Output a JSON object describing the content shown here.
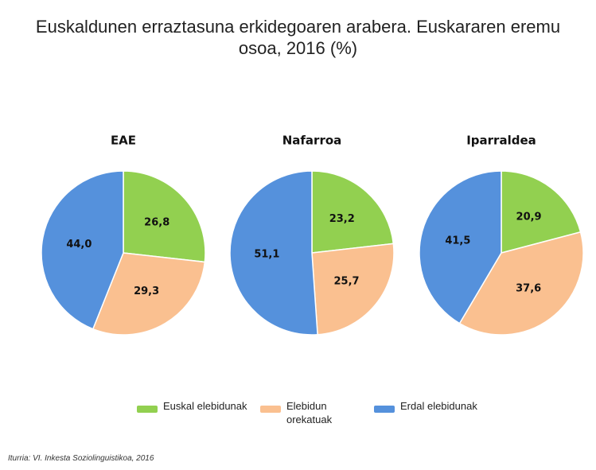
{
  "title": "Euskaldunen erraztasuna erkidegoaren arabera. Euskararen eremu osoa, 2016 (%)",
  "source": "Iturria: VI. Inkesta Soziolinguistikoa, 2016",
  "chart_data": [
    {
      "type": "pie",
      "title": "EAE",
      "categories": [
        "Euskal elebidunak",
        "Elebidun orekatuak",
        "Erdal elebidunak"
      ],
      "values": [
        26.8,
        29.3,
        44.0
      ],
      "value_labels": [
        "26,8",
        "29,3",
        "44,0"
      ],
      "colors": [
        "#92d050",
        "#fac090",
        "#5591dc"
      ]
    },
    {
      "type": "pie",
      "title": "Nafarroa",
      "categories": [
        "Euskal elebidunak",
        "Elebidun orekatuak",
        "Erdal elebidunak"
      ],
      "values": [
        23.2,
        25.7,
        51.1
      ],
      "value_labels": [
        "23,2",
        "25,7",
        "51,1"
      ],
      "colors": [
        "#92d050",
        "#fac090",
        "#5591dc"
      ]
    },
    {
      "type": "pie",
      "title": "Iparraldea",
      "categories": [
        "Euskal elebidunak",
        "Elebidun orekatuak",
        "Erdal elebidunak"
      ],
      "values": [
        20.9,
        37.6,
        41.5
      ],
      "value_labels": [
        "20,9",
        "37,6",
        "41,5"
      ],
      "colors": [
        "#92d050",
        "#fac090",
        "#5591dc"
      ]
    }
  ]
}
